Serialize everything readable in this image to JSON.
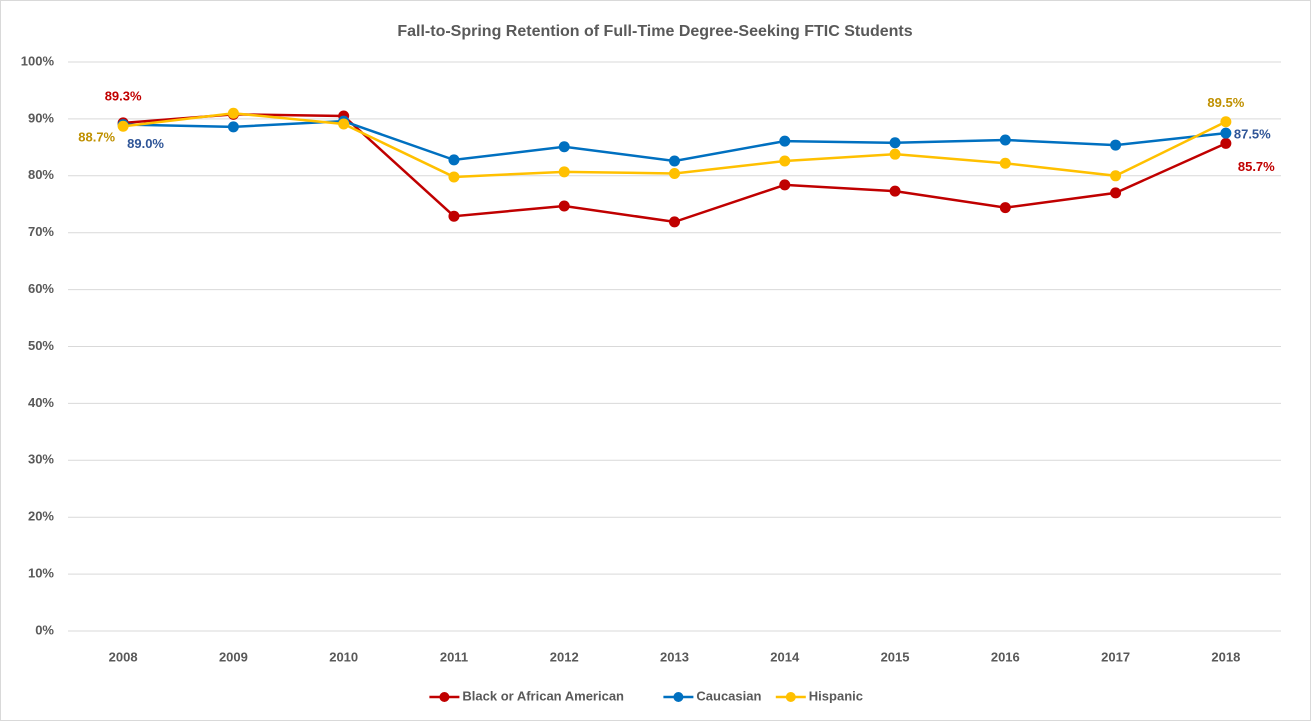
{
  "chart_data": {
    "type": "line",
    "title": "Fall-to-Spring Retention of Full-Time Degree-Seeking FTIC Students",
    "categories": [
      "2008",
      "2009",
      "2010",
      "2011",
      "2012",
      "2013",
      "2014",
      "2015",
      "2016",
      "2017",
      "2018"
    ],
    "series": [
      {
        "name": "Black or African American",
        "color": "#c00000",
        "label_color": "#c00000",
        "values": [
          89.3,
          90.8,
          90.5,
          72.9,
          74.7,
          71.9,
          78.4,
          77.3,
          74.4,
          77.0,
          85.7
        ],
        "value_labels": [
          "89.3%",
          null,
          null,
          null,
          null,
          null,
          null,
          null,
          null,
          null,
          "85.7%"
        ]
      },
      {
        "name": "Caucasian",
        "color": "#0070c0",
        "label_color": "#2f5597",
        "values": [
          89.0,
          88.6,
          89.6,
          82.8,
          85.1,
          82.6,
          86.1,
          85.8,
          86.3,
          85.4,
          87.5
        ],
        "value_labels": [
          "89.0%",
          null,
          null,
          null,
          null,
          null,
          null,
          null,
          null,
          null,
          "87.5%"
        ]
      },
      {
        "name": "Hispanic",
        "color": "#ffc000",
        "label_color": "#bf9000",
        "values": [
          88.7,
          91.0,
          89.1,
          79.8,
          80.7,
          80.4,
          82.6,
          83.8,
          82.2,
          80.0,
          89.5
        ],
        "value_labels": [
          "88.7%",
          null,
          null,
          null,
          null,
          null,
          null,
          null,
          null,
          null,
          "89.5%"
        ]
      }
    ],
    "ylim": [
      0,
      100
    ],
    "yticks": [
      {
        "value": 0,
        "label": "0%"
      },
      {
        "value": 10,
        "label": "10%"
      },
      {
        "value": 20,
        "label": "20%"
      },
      {
        "value": 30,
        "label": "30%"
      },
      {
        "value": 40,
        "label": "40%"
      },
      {
        "value": 50,
        "label": "50%"
      },
      {
        "value": 60,
        "label": "60%"
      },
      {
        "value": 70,
        "label": "70%"
      },
      {
        "value": 80,
        "label": "80%"
      },
      {
        "value": 90,
        "label": "90%"
      },
      {
        "value": 100,
        "label": "100%"
      }
    ],
    "grid": true,
    "legend": "bottom"
  }
}
